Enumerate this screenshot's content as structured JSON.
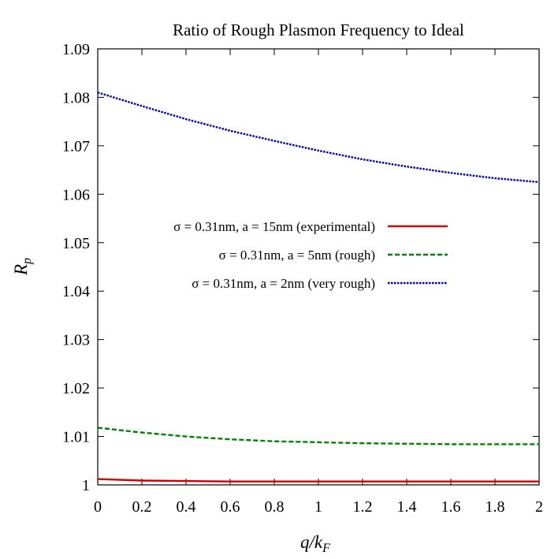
{
  "chart_data": {
    "type": "line",
    "title": "Ratio of Rough Plasmon Frequency to Ideal",
    "xlabel": "q/k_F",
    "ylabel": "R_p",
    "xlim": [
      0,
      2
    ],
    "ylim": [
      1,
      1.09
    ],
    "x_ticks": [
      "0",
      "0.2",
      "0.4",
      "0.6",
      "0.8",
      "1",
      "1.2",
      "1.4",
      "1.6",
      "1.8",
      "2"
    ],
    "y_ticks": [
      "1",
      "1.01",
      "1.02",
      "1.03",
      "1.04",
      "1.05",
      "1.06",
      "1.07",
      "1.08",
      "1.09"
    ],
    "grid": false,
    "legend_placement": "center-left",
    "x": [
      0,
      0.2,
      0.4,
      0.6,
      0.8,
      1.0,
      1.2,
      1.4,
      1.6,
      1.8,
      2.0
    ],
    "series": [
      {
        "name": "σ = 0.31nm, a = 15nm (experimental)",
        "color": "#cc0000",
        "dash": "solid",
        "values": [
          1.0012,
          1.0009,
          1.0008,
          1.0007,
          1.0007,
          1.0007,
          1.0007,
          1.0007,
          1.0007,
          1.0007,
          1.0007
        ]
      },
      {
        "name": "σ = 0.31nm, a = 5nm (rough)",
        "color": "#008000",
        "dash": "dashed",
        "values": [
          1.0118,
          1.0108,
          1.01,
          1.0094,
          1.009,
          1.0088,
          1.0086,
          1.0085,
          1.0084,
          1.0084,
          1.0084
        ]
      },
      {
        "name": "σ = 0.31nm, a = 2nm (very rough)",
        "color": "#0000aa",
        "dash": "dotted",
        "values": [
          1.081,
          1.0782,
          1.0755,
          1.0731,
          1.071,
          1.069,
          1.0672,
          1.0657,
          1.0644,
          1.0633,
          1.0625
        ]
      }
    ]
  }
}
